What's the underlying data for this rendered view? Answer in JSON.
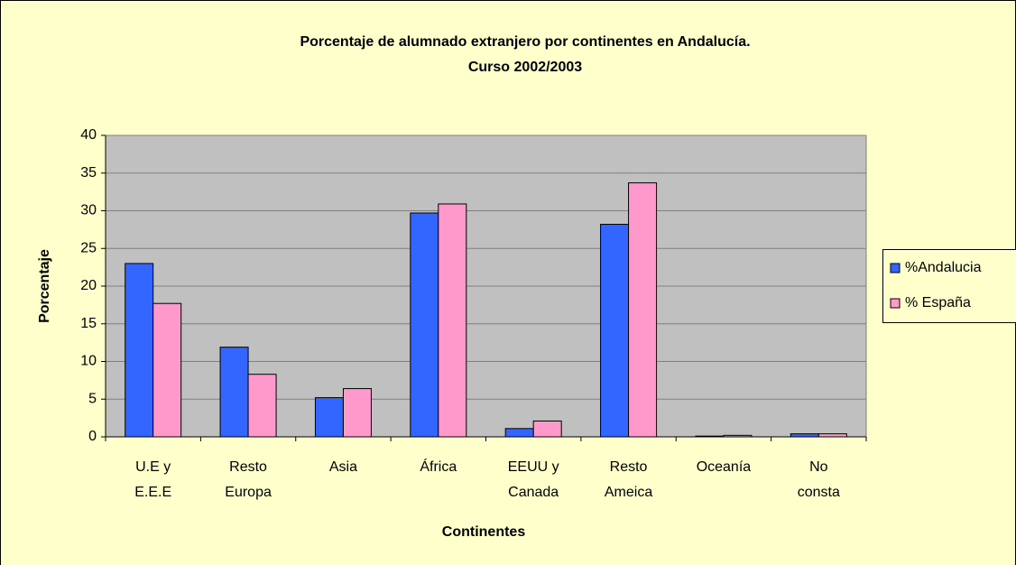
{
  "chart_data": {
    "type": "bar",
    "title": "Porcentaje de alumnado extranjero por continentes en Andalucía.",
    "subtitle": "Curso 2002/2003",
    "x_label": "Continentes",
    "y_label": "Porcentaje",
    "categories": [
      [
        "U.E y",
        "E.E.E"
      ],
      [
        "Resto",
        "Europa"
      ],
      [
        "Asia"
      ],
      [
        "África"
      ],
      [
        "EEUU y",
        "Canada"
      ],
      [
        "Resto",
        "Ameica"
      ],
      [
        "Oceanía"
      ],
      [
        "No",
        "consta"
      ]
    ],
    "series": [
      {
        "name": "%Andalucia",
        "color": "#3366ff",
        "values": [
          23.0,
          11.9,
          5.2,
          29.7,
          1.1,
          28.2,
          0.1,
          0.4
        ]
      },
      {
        "name": "% España",
        "color": "#ff99cc",
        "values": [
          17.7,
          8.3,
          6.4,
          30.9,
          2.1,
          33.7,
          0.2,
          0.4
        ]
      }
    ],
    "ylim": [
      0,
      40
    ],
    "yticks": [
      0,
      5,
      10,
      15,
      20,
      25,
      30,
      35,
      40
    ],
    "grid": true,
    "legend": "right"
  }
}
